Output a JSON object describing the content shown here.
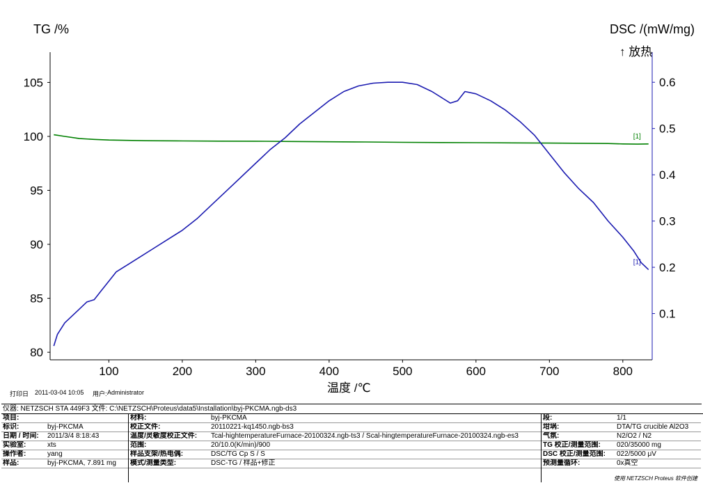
{
  "chart_data": {
    "type": "line",
    "xlabel": "温度 /℃",
    "ylabel_left": "TG /%",
    "ylabel_right": "DSC /(mW/mg)",
    "right_axis_note": "↑ 放热",
    "x_ticks": [
      100,
      200,
      300,
      400,
      500,
      600,
      700,
      800
    ],
    "y_left_ticks": [
      80,
      85,
      90,
      95,
      100,
      105
    ],
    "y_right_ticks": [
      0.1,
      0.2,
      0.3,
      0.4,
      0.5,
      0.6
    ],
    "xlim": [
      20,
      840
    ],
    "ylim_left": [
      79.3,
      107.8
    ],
    "ylim_right": [
      0.0,
      0.665
    ],
    "grid": false,
    "series": [
      {
        "name": "TG",
        "axis": "left",
        "color": "#008000",
        "end_label": "[1]",
        "x": [
          25,
          40,
          60,
          80,
          100,
          150,
          200,
          250,
          300,
          350,
          400,
          450,
          500,
          550,
          600,
          650,
          700,
          750,
          780,
          800,
          820,
          835
        ],
        "y": [
          100.15,
          100.0,
          99.8,
          99.72,
          99.66,
          99.6,
          99.58,
          99.56,
          99.55,
          99.53,
          99.5,
          99.48,
          99.45,
          99.43,
          99.42,
          99.4,
          99.38,
          99.36,
          99.34,
          99.3,
          99.28,
          99.3
        ]
      },
      {
        "name": "DSC",
        "axis": "right",
        "color": "#1a1ab0",
        "end_label": "[1]",
        "x": [
          25,
          30,
          40,
          50,
          60,
          70,
          80,
          90,
          100,
          110,
          120,
          140,
          160,
          180,
          200,
          220,
          240,
          260,
          280,
          300,
          320,
          340,
          360,
          380,
          400,
          420,
          440,
          460,
          480,
          500,
          520,
          540,
          555,
          565,
          575,
          585,
          600,
          620,
          640,
          660,
          680,
          700,
          720,
          740,
          760,
          780,
          800,
          815,
          825,
          835
        ],
        "y": [
          0.03,
          0.055,
          0.08,
          0.095,
          0.11,
          0.125,
          0.13,
          0.15,
          0.17,
          0.19,
          0.2,
          0.22,
          0.24,
          0.26,
          0.28,
          0.305,
          0.335,
          0.365,
          0.395,
          0.425,
          0.455,
          0.48,
          0.51,
          0.535,
          0.56,
          0.58,
          0.592,
          0.598,
          0.6,
          0.6,
          0.595,
          0.58,
          0.565,
          0.555,
          0.56,
          0.58,
          0.575,
          0.56,
          0.54,
          0.515,
          0.485,
          0.445,
          0.405,
          0.37,
          0.34,
          0.3,
          0.265,
          0.235,
          0.21,
          0.195
        ]
      }
    ]
  },
  "meta": {
    "print_date_label": "打印日",
    "print_date": "2011-03-04 10:05",
    "user_label": "用户:",
    "user": "Administrator"
  },
  "info": {
    "header": "仪器: NETZSCH STA 449F3  文件: C:\\NETZSCH\\Proteus\\data5\\Installation\\byj-PKCMA.ngb-ds3",
    "col1": [
      {
        "k": "项目:",
        "v": ""
      },
      {
        "k": "标识:",
        "v": "byj-PKCMA"
      },
      {
        "k": "日期 / 时间:",
        "v": "2011/3/4 8:18:43"
      },
      {
        "k": "实验室:",
        "v": "xts"
      },
      {
        "k": "操作者:",
        "v": "yang"
      },
      {
        "k": "样品:",
        "v": "byj-PKCMA, 7.891 mg"
      }
    ],
    "col2": [
      {
        "k": "材料:",
        "v": "byj-PKCMA"
      },
      {
        "k": "校正文件:",
        "v": "20110221-kq1450.ngb-bs3"
      },
      {
        "k": "温度/灵敏度校正文件:",
        "v": "Tcal-hightemperatureFurnace-20100324.ngb-ts3 / Scal-hingtemperatureFurnace-20100324.ngb-es3"
      },
      {
        "k": "范围:",
        "v": "20/10.0(K/min)/900"
      },
      {
        "k": "样品支架/热电偶:",
        "v": "DSC/TG Cp S / S"
      },
      {
        "k": "模式/测量类型:",
        "v": "DSC-TG / 样品+修正"
      }
    ],
    "col3": [
      {
        "k": "段:",
        "v": "1/1"
      },
      {
        "k": "坩埚:",
        "v": "DTA/TG crucible Al2O3"
      },
      {
        "k": "气氛:",
        "v": "N2/O2 / N2"
      },
      {
        "k": "TG 校正/测量范围:",
        "v": "020/35000 mg"
      },
      {
        "k": "DSC 校正/测量范围:",
        "v": "022/5000 μV"
      },
      {
        "k": "预测量循环:",
        "v": "0x真空"
      }
    ],
    "footer": "使用 NETZSCH Proteus 软件创建"
  },
  "colors": {
    "tg": "#008000",
    "dsc": "#1a1ab0",
    "axis_right": "#1a1ab0"
  }
}
